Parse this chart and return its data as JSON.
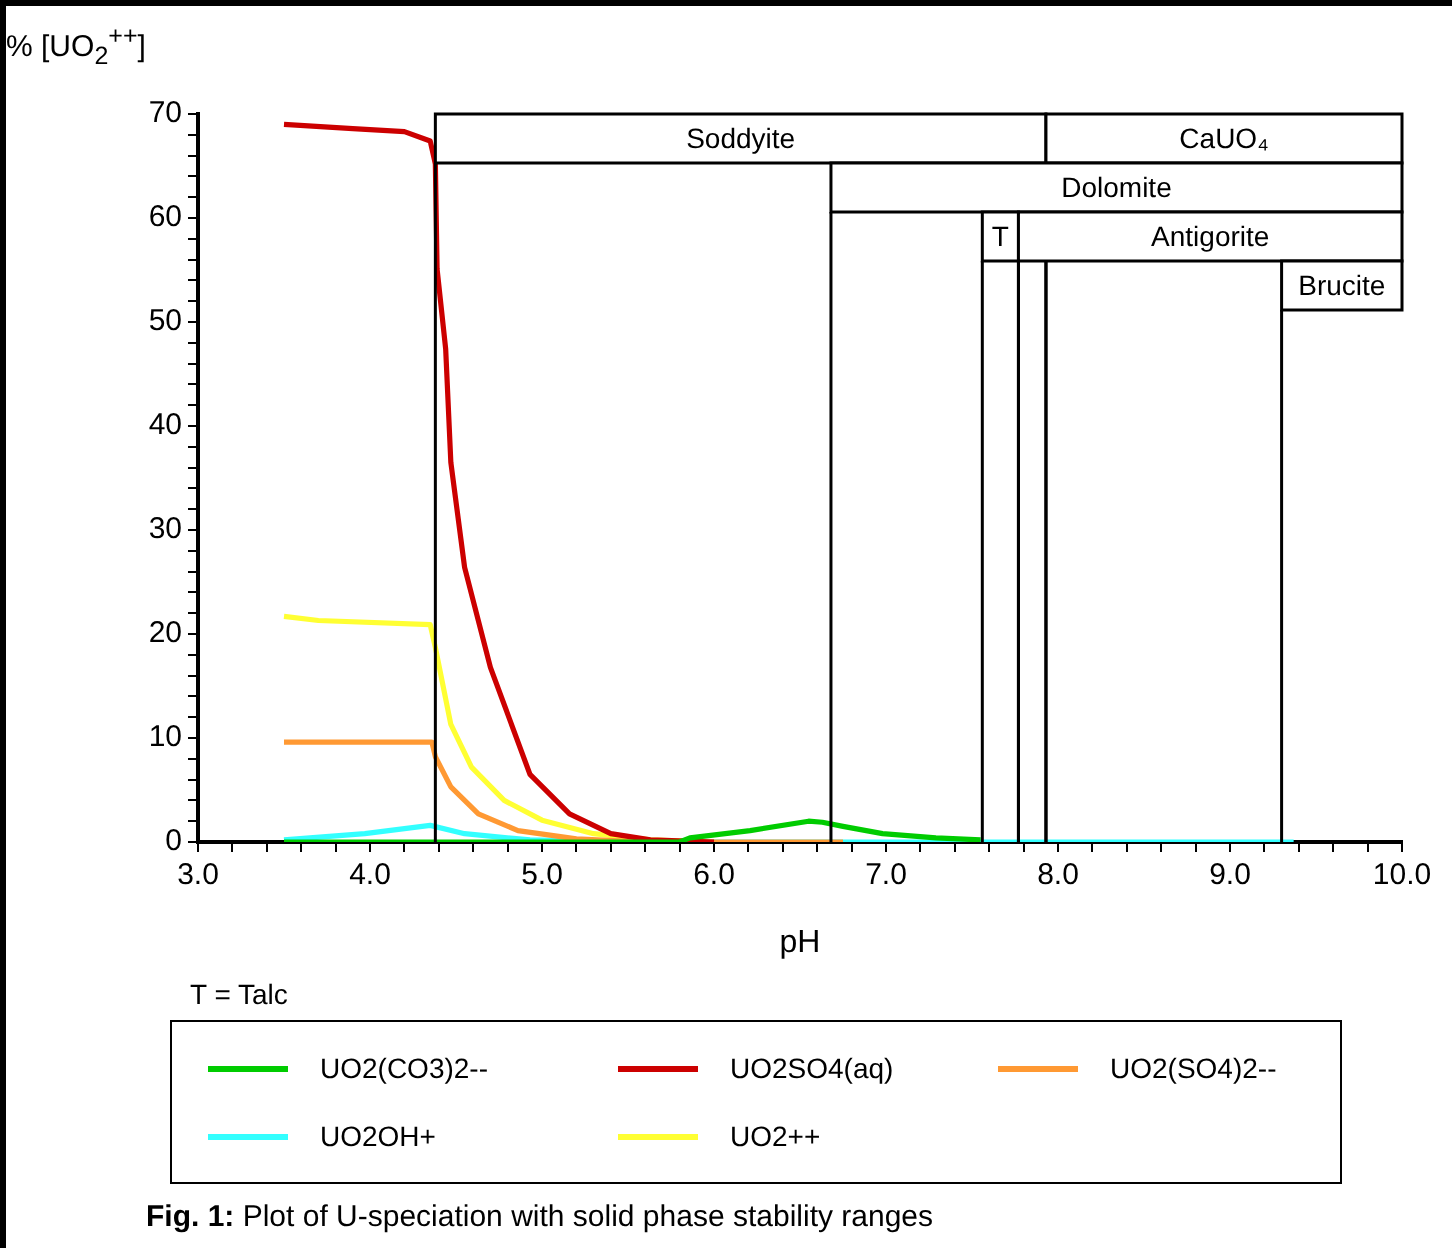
{
  "chart_data": {
    "type": "line",
    "ylabel": "% [UO$_{2}$$^{++}$]",
    "xlabel": "pH",
    "xlim": [
      3,
      10
    ],
    "ylim": [
      0,
      70
    ],
    "xticks": [
      {
        "value": 3,
        "label": "3.0"
      },
      {
        "value": 3.2,
        "label": null
      },
      {
        "value": 3.4,
        "label": null
      },
      {
        "value": 3.6,
        "label": null
      },
      {
        "value": 3.8,
        "label": null
      },
      {
        "value": 4,
        "label": "4.0"
      },
      {
        "value": 4.2,
        "label": null
      },
      {
        "value": 4.4,
        "label": null
      },
      {
        "value": 4.6,
        "label": null
      },
      {
        "value": 4.8,
        "label": null
      },
      {
        "value": 5,
        "label": "5.0"
      },
      {
        "value": 5.2,
        "label": null
      },
      {
        "value": 5.4,
        "label": null
      },
      {
        "value": 5.6,
        "label": null
      },
      {
        "value": 5.8,
        "label": null
      },
      {
        "value": 6,
        "label": "6.0"
      },
      {
        "value": 6.2,
        "label": null
      },
      {
        "value": 6.4,
        "label": null
      },
      {
        "value": 6.6,
        "label": null
      },
      {
        "value": 6.8,
        "label": null
      },
      {
        "value": 7,
        "label": "7.0"
      },
      {
        "value": 7.2,
        "label": null
      },
      {
        "value": 7.4,
        "label": null
      },
      {
        "value": 7.6,
        "label": null
      },
      {
        "value": 7.8,
        "label": null
      },
      {
        "value": 8,
        "label": "8.0"
      },
      {
        "value": 8.2,
        "label": null
      },
      {
        "value": 8.4,
        "label": null
      },
      {
        "value": 8.6,
        "label": null
      },
      {
        "value": 8.8,
        "label": null
      },
      {
        "value": 9,
        "label": "9.0"
      },
      {
        "value": 9.2,
        "label": null
      },
      {
        "value": 9.4,
        "label": null
      },
      {
        "value": 9.6,
        "label": null
      },
      {
        "value": 9.8,
        "label": null
      },
      {
        "value": 10,
        "label": "10.0"
      }
    ],
    "yticks": [
      0,
      {
        "value": 2,
        "label": null
      },
      {
        "value": 4,
        "label": null
      },
      {
        "value": 6,
        "label": null
      },
      {
        "value": 8,
        "label": null
      },
      10,
      {
        "value": 12,
        "label": null
      },
      {
        "value": 14,
        "label": null
      },
      {
        "value": 16,
        "label": null
      },
      {
        "value": 18,
        "label": null
      },
      20,
      {
        "value": 22,
        "label": null
      },
      {
        "value": 24,
        "label": null
      },
      {
        "value": 26,
        "label": null
      },
      {
        "value": 28,
        "label": null
      },
      30,
      {
        "value": 32,
        "label": null
      },
      {
        "value": 34,
        "label": null
      },
      {
        "value": 36,
        "label": null
      },
      {
        "value": 38,
        "label": null
      },
      40,
      {
        "value": 42,
        "label": null
      },
      {
        "value": 44,
        "label": null
      },
      {
        "value": 46,
        "label": null
      },
      {
        "value": 48,
        "label": null
      },
      50,
      {
        "value": 52,
        "label": null
      },
      {
        "value": 54,
        "label": null
      },
      {
        "value": 56,
        "label": null
      },
      {
        "value": 58,
        "label": null
      },
      60,
      {
        "value": 62,
        "label": null
      },
      {
        "value": 64,
        "label": null
      },
      {
        "value": 66,
        "label": null
      },
      {
        "value": 68,
        "label": null
      },
      70
    ],
    "legend": "bottom",
    "line_style": "solid",
    "series": [
      {
        "name": "UO2(CO3)2--",
        "color": "#00cc00",
        "x": [
          3.5,
          5.8,
          5.86,
          6.21,
          6.55,
          6.63,
          6.75,
          6.98,
          7.29,
          7.55
        ],
        "values": [
          0,
          0,
          0.4,
          1.1,
          2.0,
          1.9,
          1.5,
          0.8,
          0.4,
          0.2
        ]
      },
      {
        "name": "UO2SO4(aq)",
        "color": "#cc0000",
        "x": [
          3.5,
          3.9,
          4.2,
          4.35,
          4.38,
          4.39,
          4.44,
          4.47,
          4.55,
          4.7,
          4.93,
          5.16,
          5.4,
          5.63,
          6.0
        ],
        "values": [
          69,
          68.6,
          68.3,
          67.4,
          65.2,
          55.1,
          47.4,
          36.5,
          26.4,
          16.8,
          6.5,
          2.7,
          0.8,
          0.2,
          0
        ]
      },
      {
        "name": "UO2(SO4)2--",
        "color": "#ff9933",
        "x": [
          3.5,
          4.36,
          4.38,
          4.47,
          4.63,
          4.86,
          5.2,
          5.6,
          6.75
        ],
        "values": [
          9.6,
          9.6,
          8.2,
          5.3,
          2.7,
          1.1,
          0.3,
          0,
          0
        ]
      },
      {
        "name": "UO2OH+",
        "color": "#33ffff",
        "x": [
          3.5,
          3.97,
          4.35,
          4.55,
          4.93,
          5.5,
          9.37
        ],
        "values": [
          0.2,
          0.8,
          1.6,
          0.8,
          0.2,
          0,
          0
        ]
      },
      {
        "name": "UO2++",
        "color": "#ffff33",
        "x": [
          3.5,
          3.7,
          4.35,
          4.38,
          4.47,
          4.59,
          4.78,
          5.0,
          5.3,
          5.63,
          6.0
        ],
        "values": [
          21.7,
          21.3,
          20.9,
          18.7,
          11.3,
          7.2,
          4.0,
          2.1,
          0.8,
          0.2,
          0
        ]
      }
    ],
    "bands": [
      {
        "axis": "x",
        "from": 4.38,
        "to": 7.93,
        "label": "Soddyite",
        "color": "#ffffff"
      },
      {
        "axis": "x",
        "from": 7.93,
        "to": 10,
        "label": "CaUO₄",
        "color": "#ffffff"
      },
      {
        "axis": "x",
        "from": 6.68,
        "to": 10,
        "label": "Dolomite",
        "color": "#ffffff"
      },
      {
        "axis": "x",
        "from": 7.56,
        "to": 7.77,
        "label": "T",
        "color": "#ffffff"
      },
      {
        "axis": "x",
        "from": 7.77,
        "to": 10,
        "label": "Antigorite",
        "color": "#ffffff"
      },
      {
        "axis": "x",
        "from": 9.3,
        "to": 10,
        "label": "Brucite",
        "color": "#ffffff"
      }
    ],
    "annotations": [
      "T = Talc",
      "Fig. 1: Plot of U-speciation with solid phase stability ranges"
    ]
  }
}
